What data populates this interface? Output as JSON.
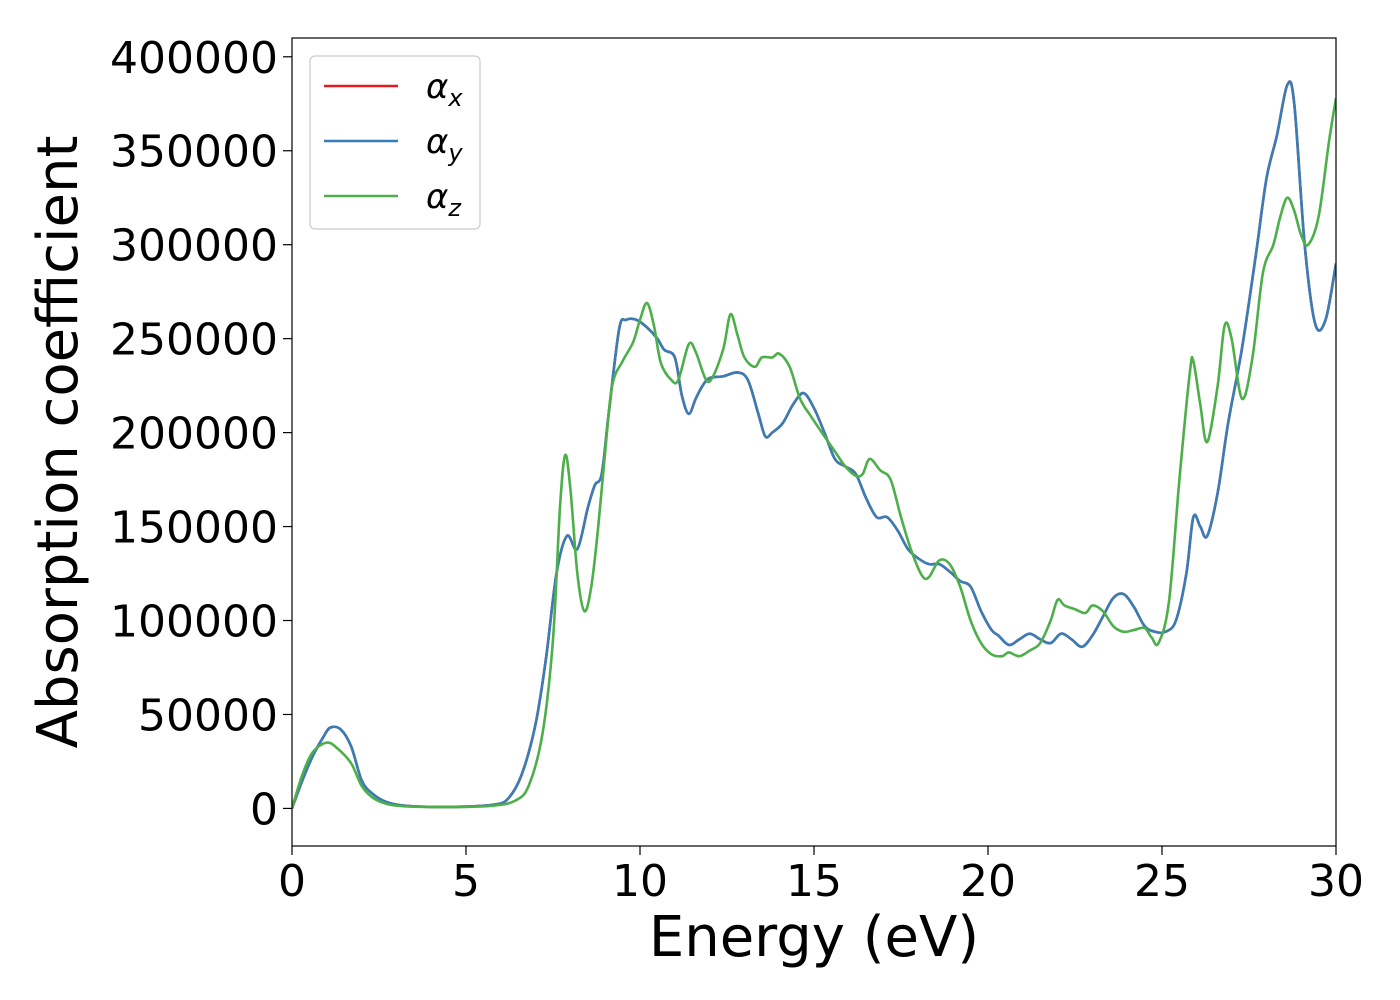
{
  "chart_data": {
    "type": "line",
    "title": "",
    "xlabel": "Energy (eV)",
    "ylabel": "Absorption coefficient",
    "xlim": [
      0,
      30
    ],
    "ylim": [
      -20000,
      410000
    ],
    "xticks": [
      0,
      5,
      10,
      15,
      20,
      25,
      30
    ],
    "xtick_labels": [
      "0",
      "5",
      "10",
      "15",
      "20",
      "25",
      "30"
    ],
    "yticks": [
      0,
      50000,
      100000,
      150000,
      200000,
      250000,
      300000,
      350000,
      400000
    ],
    "ytick_labels": [
      "0",
      "50000",
      "100000",
      "150000",
      "200000",
      "250000",
      "300000",
      "350000",
      "400000"
    ],
    "grid": false,
    "legend_position": "top-left",
    "series": [
      {
        "name": "α",
        "subscript": "x",
        "color": "#e41a1c",
        "points": [
          [
            0,
            0
          ],
          [
            0.3,
            15000
          ],
          [
            0.6,
            28000
          ],
          [
            0.9,
            38000
          ],
          [
            1.1,
            43000
          ],
          [
            1.4,
            42000
          ],
          [
            1.7,
            33000
          ],
          [
            2.0,
            15000
          ],
          [
            2.3,
            8000
          ],
          [
            2.7,
            3500
          ],
          [
            3.2,
            1500
          ],
          [
            4.0,
            800
          ],
          [
            5.0,
            1000
          ],
          [
            5.8,
            2000
          ],
          [
            6.2,
            5000
          ],
          [
            6.6,
            18000
          ],
          [
            7.0,
            45000
          ],
          [
            7.3,
            80000
          ],
          [
            7.6,
            125000
          ],
          [
            7.9,
            145000
          ],
          [
            8.2,
            138000
          ],
          [
            8.5,
            160000
          ],
          [
            8.7,
            172000
          ],
          [
            8.9,
            178000
          ],
          [
            9.1,
            210000
          ],
          [
            9.4,
            255000
          ],
          [
            9.6,
            260000
          ],
          [
            9.9,
            260000
          ],
          [
            10.2,
            256000
          ],
          [
            10.5,
            250000
          ],
          [
            10.7,
            244000
          ],
          [
            11.0,
            240000
          ],
          [
            11.2,
            220000
          ],
          [
            11.4,
            210000
          ],
          [
            11.6,
            218000
          ],
          [
            11.8,
            225000
          ],
          [
            12.0,
            229000
          ],
          [
            12.4,
            230000
          ],
          [
            12.8,
            232000
          ],
          [
            13.1,
            228000
          ],
          [
            13.4,
            210000
          ],
          [
            13.6,
            198000
          ],
          [
            13.8,
            200000
          ],
          [
            14.1,
            205000
          ],
          [
            14.4,
            215000
          ],
          [
            14.7,
            221000
          ],
          [
            15.0,
            213000
          ],
          [
            15.3,
            200000
          ],
          [
            15.6,
            186000
          ],
          [
            15.9,
            182000
          ],
          [
            16.2,
            178000
          ],
          [
            16.5,
            165000
          ],
          [
            16.8,
            155000
          ],
          [
            17.1,
            155000
          ],
          [
            17.4,
            148000
          ],
          [
            17.7,
            138000
          ],
          [
            18.0,
            133000
          ],
          [
            18.3,
            130000
          ],
          [
            18.6,
            130000
          ],
          [
            18.9,
            126000
          ],
          [
            19.2,
            121000
          ],
          [
            19.5,
            118000
          ],
          [
            19.8,
            105000
          ],
          [
            20.1,
            95000
          ],
          [
            20.3,
            92000
          ],
          [
            20.6,
            87000
          ],
          [
            20.9,
            90000
          ],
          [
            21.2,
            93000
          ],
          [
            21.5,
            90000
          ],
          [
            21.8,
            88000
          ],
          [
            22.1,
            93000
          ],
          [
            22.4,
            90000
          ],
          [
            22.7,
            86000
          ],
          [
            23.0,
            92000
          ],
          [
            23.3,
            102000
          ],
          [
            23.6,
            112000
          ],
          [
            23.9,
            114000
          ],
          [
            24.2,
            107000
          ],
          [
            24.5,
            97000
          ],
          [
            24.8,
            94000
          ],
          [
            25.1,
            94000
          ],
          [
            25.4,
            100000
          ],
          [
            25.7,
            125000
          ],
          [
            25.9,
            155000
          ],
          [
            26.1,
            150000
          ],
          [
            26.3,
            145000
          ],
          [
            26.6,
            168000
          ],
          [
            26.9,
            205000
          ],
          [
            27.3,
            245000
          ],
          [
            27.7,
            295000
          ],
          [
            28.0,
            335000
          ],
          [
            28.3,
            358000
          ],
          [
            28.6,
            385000
          ],
          [
            28.8,
            375000
          ],
          [
            29.1,
            300000
          ],
          [
            29.4,
            258000
          ],
          [
            29.7,
            260000
          ],
          [
            30.0,
            290000
          ]
        ]
      },
      {
        "name": "α",
        "subscript": "y",
        "color": "#377eb8",
        "points": [
          [
            0,
            0
          ],
          [
            0.3,
            15000
          ],
          [
            0.6,
            28000
          ],
          [
            0.9,
            38000
          ],
          [
            1.1,
            43000
          ],
          [
            1.4,
            42000
          ],
          [
            1.7,
            33000
          ],
          [
            2.0,
            15000
          ],
          [
            2.3,
            8000
          ],
          [
            2.7,
            3500
          ],
          [
            3.2,
            1500
          ],
          [
            4.0,
            800
          ],
          [
            5.0,
            1000
          ],
          [
            5.8,
            2000
          ],
          [
            6.2,
            5000
          ],
          [
            6.6,
            18000
          ],
          [
            7.0,
            45000
          ],
          [
            7.3,
            80000
          ],
          [
            7.6,
            125000
          ],
          [
            7.9,
            145000
          ],
          [
            8.2,
            138000
          ],
          [
            8.5,
            160000
          ],
          [
            8.7,
            172000
          ],
          [
            8.9,
            178000
          ],
          [
            9.1,
            210000
          ],
          [
            9.4,
            255000
          ],
          [
            9.6,
            260000
          ],
          [
            9.9,
            260000
          ],
          [
            10.2,
            256000
          ],
          [
            10.5,
            250000
          ],
          [
            10.7,
            244000
          ],
          [
            11.0,
            240000
          ],
          [
            11.2,
            220000
          ],
          [
            11.4,
            210000
          ],
          [
            11.6,
            218000
          ],
          [
            11.8,
            225000
          ],
          [
            12.0,
            229000
          ],
          [
            12.4,
            230000
          ],
          [
            12.8,
            232000
          ],
          [
            13.1,
            228000
          ],
          [
            13.4,
            210000
          ],
          [
            13.6,
            198000
          ],
          [
            13.8,
            200000
          ],
          [
            14.1,
            205000
          ],
          [
            14.4,
            215000
          ],
          [
            14.7,
            221000
          ],
          [
            15.0,
            213000
          ],
          [
            15.3,
            200000
          ],
          [
            15.6,
            186000
          ],
          [
            15.9,
            182000
          ],
          [
            16.2,
            178000
          ],
          [
            16.5,
            165000
          ],
          [
            16.8,
            155000
          ],
          [
            17.1,
            155000
          ],
          [
            17.4,
            148000
          ],
          [
            17.7,
            138000
          ],
          [
            18.0,
            133000
          ],
          [
            18.3,
            130000
          ],
          [
            18.6,
            130000
          ],
          [
            18.9,
            126000
          ],
          [
            19.2,
            121000
          ],
          [
            19.5,
            118000
          ],
          [
            19.8,
            105000
          ],
          [
            20.1,
            95000
          ],
          [
            20.3,
            92000
          ],
          [
            20.6,
            87000
          ],
          [
            20.9,
            90000
          ],
          [
            21.2,
            93000
          ],
          [
            21.5,
            90000
          ],
          [
            21.8,
            88000
          ],
          [
            22.1,
            93000
          ],
          [
            22.4,
            90000
          ],
          [
            22.7,
            86000
          ],
          [
            23.0,
            92000
          ],
          [
            23.3,
            102000
          ],
          [
            23.6,
            112000
          ],
          [
            23.9,
            114000
          ],
          [
            24.2,
            107000
          ],
          [
            24.5,
            97000
          ],
          [
            24.8,
            94000
          ],
          [
            25.1,
            94000
          ],
          [
            25.4,
            100000
          ],
          [
            25.7,
            125000
          ],
          [
            25.9,
            155000
          ],
          [
            26.1,
            150000
          ],
          [
            26.3,
            145000
          ],
          [
            26.6,
            168000
          ],
          [
            26.9,
            205000
          ],
          [
            27.3,
            245000
          ],
          [
            27.7,
            295000
          ],
          [
            28.0,
            335000
          ],
          [
            28.3,
            358000
          ],
          [
            28.6,
            385000
          ],
          [
            28.8,
            375000
          ],
          [
            29.1,
            300000
          ],
          [
            29.4,
            258000
          ],
          [
            29.7,
            260000
          ],
          [
            30.0,
            290000
          ]
        ]
      },
      {
        "name": "α",
        "subscript": "z",
        "color": "#4daf4a",
        "points": [
          [
            0,
            0
          ],
          [
            0.3,
            18000
          ],
          [
            0.6,
            30000
          ],
          [
            1.0,
            35000
          ],
          [
            1.3,
            32000
          ],
          [
            1.7,
            24000
          ],
          [
            2.0,
            12000
          ],
          [
            2.3,
            6000
          ],
          [
            2.7,
            2500
          ],
          [
            3.2,
            1200
          ],
          [
            4.0,
            800
          ],
          [
            5.0,
            800
          ],
          [
            5.8,
            1500
          ],
          [
            6.4,
            4000
          ],
          [
            6.8,
            12000
          ],
          [
            7.2,
            40000
          ],
          [
            7.5,
            90000
          ],
          [
            7.7,
            160000
          ],
          [
            7.85,
            188000
          ],
          [
            8.0,
            170000
          ],
          [
            8.2,
            125000
          ],
          [
            8.4,
            105000
          ],
          [
            8.6,
            118000
          ],
          [
            8.8,
            150000
          ],
          [
            9.0,
            190000
          ],
          [
            9.2,
            225000
          ],
          [
            9.5,
            238000
          ],
          [
            9.8,
            248000
          ],
          [
            10.0,
            260000
          ],
          [
            10.2,
            269000
          ],
          [
            10.4,
            257000
          ],
          [
            10.6,
            237000
          ],
          [
            10.9,
            228000
          ],
          [
            11.1,
            228000
          ],
          [
            11.4,
            247000
          ],
          [
            11.6,
            243000
          ],
          [
            11.9,
            228000
          ],
          [
            12.1,
            230000
          ],
          [
            12.4,
            245000
          ],
          [
            12.6,
            263000
          ],
          [
            12.8,
            252000
          ],
          [
            13.0,
            240000
          ],
          [
            13.3,
            235000
          ],
          [
            13.5,
            240000
          ],
          [
            13.8,
            240000
          ],
          [
            14.0,
            242000
          ],
          [
            14.3,
            235000
          ],
          [
            14.6,
            218000
          ],
          [
            14.9,
            209000
          ],
          [
            15.3,
            198000
          ],
          [
            15.6,
            190000
          ],
          [
            15.9,
            182000
          ],
          [
            16.2,
            177000
          ],
          [
            16.4,
            178000
          ],
          [
            16.6,
            186000
          ],
          [
            16.9,
            180000
          ],
          [
            17.2,
            175000
          ],
          [
            17.5,
            155000
          ],
          [
            17.8,
            137000
          ],
          [
            18.1,
            124000
          ],
          [
            18.3,
            123000
          ],
          [
            18.6,
            132000
          ],
          [
            18.9,
            130000
          ],
          [
            19.2,
            118000
          ],
          [
            19.5,
            100000
          ],
          [
            19.8,
            88000
          ],
          [
            20.1,
            82000
          ],
          [
            20.4,
            81000
          ],
          [
            20.6,
            83000
          ],
          [
            20.9,
            81000
          ],
          [
            21.2,
            84000
          ],
          [
            21.5,
            88000
          ],
          [
            21.8,
            100000
          ],
          [
            22.0,
            111000
          ],
          [
            22.2,
            108000
          ],
          [
            22.5,
            106000
          ],
          [
            22.8,
            104000
          ],
          [
            23.0,
            108000
          ],
          [
            23.3,
            105000
          ],
          [
            23.6,
            97000
          ],
          [
            23.9,
            94000
          ],
          [
            24.2,
            95000
          ],
          [
            24.5,
            96000
          ],
          [
            24.7,
            91000
          ],
          [
            24.9,
            88000
          ],
          [
            25.2,
            110000
          ],
          [
            25.5,
            175000
          ],
          [
            25.8,
            232000
          ],
          [
            25.9,
            238000
          ],
          [
            26.1,
            215000
          ],
          [
            26.3,
            195000
          ],
          [
            26.6,
            225000
          ],
          [
            26.8,
            257000
          ],
          [
            27.0,
            250000
          ],
          [
            27.3,
            218000
          ],
          [
            27.6,
            240000
          ],
          [
            27.9,
            285000
          ],
          [
            28.2,
            300000
          ],
          [
            28.4,
            315000
          ],
          [
            28.6,
            325000
          ],
          [
            28.8,
            318000
          ],
          [
            29.0,
            305000
          ],
          [
            29.2,
            300000
          ],
          [
            29.5,
            315000
          ],
          [
            29.8,
            355000
          ],
          [
            30.0,
            378000
          ]
        ]
      }
    ]
  }
}
